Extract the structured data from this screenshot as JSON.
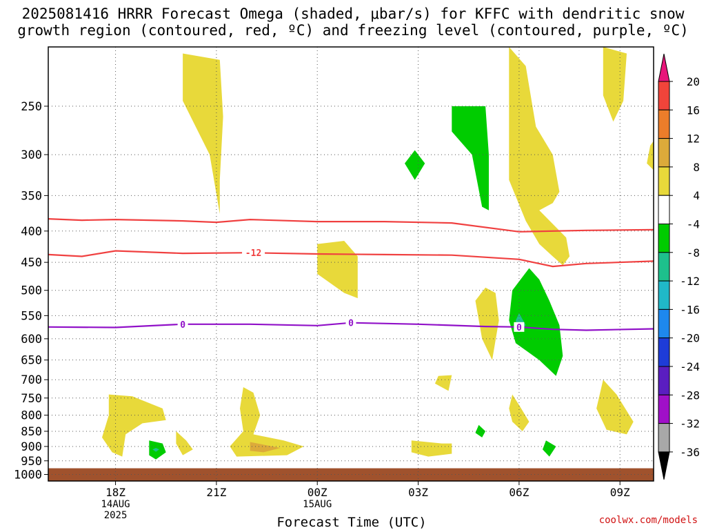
{
  "title": {
    "line1": "2025081416 HRRR Forecast Omega (shaded, μbar/s) for KFFC with dendritic snow",
    "line2": "growth region (contoured, red, ºC) and freezing level (contoured, purple, ºC)"
  },
  "footer": "coolwx.com/models",
  "chart_data": {
    "type": "heatmap",
    "xlabel": "Forecast Time (UTC)",
    "ylabel": "",
    "x_range_hours": [
      16.0,
      34.0
    ],
    "x_ticks": [
      {
        "hour": 18,
        "lines": [
          "18Z",
          "14AUG",
          "2025"
        ]
      },
      {
        "hour": 21,
        "lines": [
          "21Z"
        ]
      },
      {
        "hour": 24,
        "lines": [
          "00Z",
          "15AUG"
        ]
      },
      {
        "hour": 27,
        "lines": [
          "03Z"
        ]
      },
      {
        "hour": 30,
        "lines": [
          "06Z"
        ]
      },
      {
        "hour": 33,
        "lines": [
          "09Z"
        ]
      }
    ],
    "y_axis": "pressure_log_reversed",
    "y_range_hpa": [
      200,
      1025
    ],
    "y_ticks": [
      250,
      300,
      350,
      400,
      450,
      500,
      550,
      600,
      650,
      700,
      750,
      800,
      850,
      900,
      950,
      1000
    ],
    "grid": true,
    "colorbar": {
      "levels": [
        20,
        16,
        12,
        8,
        4,
        -4,
        -8,
        -12,
        -16,
        -20,
        -24,
        -28,
        -32,
        -36
      ],
      "colors": [
        "#e8157a",
        "#f0443a",
        "#ec7d2a",
        "#dcaa3a",
        "#e8d93a",
        "#ffffff",
        "#00cc00",
        "#1ec08c",
        "#20b8c8",
        "#1e88ee",
        "#1e3cd8",
        "#5a1ec0",
        "#a010c8",
        "#a8a8a8",
        "#000000"
      ]
    },
    "contours": [
      {
        "name": "dendritic -12",
        "color": "#f04040",
        "label": "-12",
        "points": [
          [
            16,
            437
          ],
          [
            17,
            440
          ],
          [
            18,
            431
          ],
          [
            20,
            435
          ],
          [
            22,
            434
          ],
          [
            24,
            436
          ],
          [
            26,
            437
          ],
          [
            28,
            438
          ],
          [
            30,
            445
          ],
          [
            31,
            457
          ],
          [
            32,
            452
          ],
          [
            34,
            448
          ]
        ]
      },
      {
        "name": "dendritic -18",
        "color": "#f04040",
        "label": "",
        "points": [
          [
            16,
            382
          ],
          [
            17,
            384
          ],
          [
            18,
            383
          ],
          [
            20,
            385
          ],
          [
            21,
            387
          ],
          [
            22,
            383
          ],
          [
            24,
            386
          ],
          [
            26,
            386
          ],
          [
            28,
            388
          ],
          [
            30,
            401
          ],
          [
            32,
            399
          ],
          [
            34,
            398
          ]
        ]
      },
      {
        "name": "freezing level",
        "color": "#9010c8",
        "label": "0",
        "points": [
          [
            16,
            574
          ],
          [
            18,
            575
          ],
          [
            20,
            568
          ],
          [
            22,
            568
          ],
          [
            24,
            571
          ],
          [
            25,
            565
          ],
          [
            27,
            568
          ],
          [
            29,
            573
          ],
          [
            30,
            574
          ],
          [
            31,
            579
          ],
          [
            32,
            581
          ],
          [
            34,
            578
          ]
        ]
      }
    ],
    "contour_labels": [
      {
        "text": "-12",
        "x": 22.1,
        "p": 434,
        "color": "#f04040"
      },
      {
        "text": "0",
        "x": 20.0,
        "p": 568,
        "color": "#9010c8"
      },
      {
        "text": "0",
        "x": 25.0,
        "p": 565,
        "color": "#9010c8"
      },
      {
        "text": "0",
        "x": 30.0,
        "p": 574,
        "color": "#9010c8"
      }
    ],
    "shaded_regions": [
      {
        "level": 4,
        "color": "#e8d93a",
        "points": [
          [
            20.0,
            205
          ],
          [
            21.1,
            210
          ],
          [
            21.2,
            260
          ],
          [
            21.1,
            330
          ],
          [
            21.1,
            375
          ],
          [
            20.8,
            300
          ],
          [
            20.0,
            245
          ]
        ]
      },
      {
        "level": 4,
        "color": "#e8d93a",
        "points": [
          [
            24.0,
            420
          ],
          [
            24.8,
            415
          ],
          [
            25.2,
            440
          ],
          [
            25.2,
            515
          ],
          [
            24.8,
            505
          ],
          [
            24.0,
            470
          ]
        ]
      },
      {
        "level": 4,
        "color": "#e8d93a",
        "points": [
          [
            29.7,
            200
          ],
          [
            30.2,
            215
          ],
          [
            30.5,
            270
          ],
          [
            31.0,
            300
          ],
          [
            31.2,
            345
          ],
          [
            31.0,
            360
          ],
          [
            30.6,
            370
          ],
          [
            31.4,
            410
          ],
          [
            31.5,
            440
          ],
          [
            31.3,
            455
          ],
          [
            31.0,
            440
          ],
          [
            30.6,
            420
          ],
          [
            30.2,
            385
          ],
          [
            29.7,
            330
          ]
        ]
      },
      {
        "level": 4,
        "color": "#e8d93a",
        "points": [
          [
            32.5,
            200
          ],
          [
            33.2,
            205
          ],
          [
            33.1,
            245
          ],
          [
            32.8,
            265
          ],
          [
            32.5,
            240
          ]
        ]
      },
      {
        "level": 4,
        "color": "#e8d93a",
        "points": [
          [
            33.9,
            290
          ],
          [
            34.0,
            285
          ],
          [
            34.0,
            318
          ],
          [
            33.8,
            310
          ]
        ]
      },
      {
        "level": 4,
        "color": "#e8d93a",
        "points": [
          [
            29.0,
            495
          ],
          [
            29.3,
            505
          ],
          [
            29.4,
            560
          ],
          [
            29.2,
            650
          ],
          [
            28.9,
            600
          ],
          [
            28.7,
            520
          ]
        ]
      },
      {
        "level": 4,
        "color": "#e8d93a",
        "points": [
          [
            27.6,
            690
          ],
          [
            28.0,
            688
          ],
          [
            27.9,
            730
          ],
          [
            27.5,
            710
          ]
        ]
      },
      {
        "level": 4,
        "color": "#e8d93a",
        "points": [
          [
            17.8,
            740
          ],
          [
            18.5,
            745
          ],
          [
            19.4,
            780
          ],
          [
            19.5,
            815
          ],
          [
            18.8,
            825
          ],
          [
            18.3,
            860
          ],
          [
            18.2,
            935
          ],
          [
            17.9,
            920
          ],
          [
            17.6,
            870
          ],
          [
            17.8,
            800
          ]
        ]
      },
      {
        "level": 4,
        "color": "#e8d93a",
        "points": [
          [
            19.8,
            850
          ],
          [
            20.1,
            880
          ],
          [
            20.3,
            910
          ],
          [
            20.0,
            930
          ],
          [
            19.8,
            890
          ]
        ]
      },
      {
        "level": 4,
        "color": "#e8d93a",
        "points": [
          [
            21.8,
            720
          ],
          [
            22.1,
            735
          ],
          [
            22.3,
            800
          ],
          [
            22.1,
            860
          ],
          [
            23.0,
            880
          ],
          [
            23.6,
            900
          ],
          [
            23.1,
            930
          ],
          [
            21.6,
            935
          ],
          [
            21.4,
            900
          ],
          [
            21.8,
            850
          ],
          [
            21.7,
            780
          ]
        ]
      },
      {
        "level": 4,
        "color": "#e8d93a",
        "points": [
          [
            26.8,
            880
          ],
          [
            27.7,
            890
          ],
          [
            28.0,
            890
          ],
          [
            28.0,
            925
          ],
          [
            27.3,
            935
          ],
          [
            26.8,
            920
          ]
        ]
      },
      {
        "level": 4,
        "color": "#e8d93a",
        "points": [
          [
            29.8,
            740
          ],
          [
            30.0,
            770
          ],
          [
            30.3,
            820
          ],
          [
            30.1,
            850
          ],
          [
            29.8,
            820
          ],
          [
            29.7,
            780
          ]
        ]
      },
      {
        "level": 4,
        "color": "#e8d93a",
        "points": [
          [
            32.5,
            700
          ],
          [
            32.9,
            740
          ],
          [
            33.4,
            820
          ],
          [
            33.2,
            860
          ],
          [
            32.6,
            845
          ],
          [
            32.3,
            780
          ]
        ]
      },
      {
        "level": 8,
        "color": "#dcaa3a",
        "points": [
          [
            22.0,
            885
          ],
          [
            22.9,
            905
          ],
          [
            22.4,
            920
          ],
          [
            22.0,
            915
          ]
        ]
      },
      {
        "level": -4,
        "color": "#00cc00",
        "points": [
          [
            19.0,
            880
          ],
          [
            19.4,
            890
          ],
          [
            19.5,
            920
          ],
          [
            19.2,
            945
          ],
          [
            19.0,
            930
          ]
        ]
      },
      {
        "level": -4,
        "color": "#00cc00",
        "points": [
          [
            26.9,
            295
          ],
          [
            27.2,
            310
          ],
          [
            26.9,
            330
          ],
          [
            26.6,
            310
          ]
        ]
      },
      {
        "level": -4,
        "color": "#00cc00",
        "points": [
          [
            28.0,
            250
          ],
          [
            29.0,
            250
          ],
          [
            29.1,
            300
          ],
          [
            29.1,
            370
          ],
          [
            28.9,
            365
          ],
          [
            28.6,
            300
          ],
          [
            28.0,
            275
          ]
        ]
      },
      {
        "level": -4,
        "color": "#00cc00",
        "points": [
          [
            30.3,
            460
          ],
          [
            30.6,
            480
          ],
          [
            30.9,
            520
          ],
          [
            31.2,
            570
          ],
          [
            31.3,
            640
          ],
          [
            31.1,
            690
          ],
          [
            30.6,
            650
          ],
          [
            29.9,
            610
          ],
          [
            29.7,
            560
          ],
          [
            29.8,
            500
          ]
        ]
      },
      {
        "level": -4,
        "color": "#00cc00",
        "points": [
          [
            28.8,
            830
          ],
          [
            29.0,
            850
          ],
          [
            28.9,
            870
          ],
          [
            28.7,
            855
          ]
        ]
      },
      {
        "level": -4,
        "color": "#00cc00",
        "points": [
          [
            30.8,
            880
          ],
          [
            31.1,
            900
          ],
          [
            30.9,
            935
          ],
          [
            30.7,
            910
          ]
        ]
      },
      {
        "level": -8,
        "color": "#1ec08c",
        "points": [
          [
            30.0,
            545
          ],
          [
            30.2,
            570
          ],
          [
            30.0,
            585
          ],
          [
            29.9,
            560
          ]
        ]
      },
      {
        "level": -8,
        "color": "#1ec08c",
        "points": [
          [
            19.2,
            905
          ],
          [
            19.3,
            910
          ],
          [
            19.2,
            918
          ],
          [
            19.1,
            910
          ]
        ]
      }
    ],
    "ground": {
      "color": "#a0522d",
      "from_hpa": 977,
      "to_hpa": 1025
    }
  }
}
